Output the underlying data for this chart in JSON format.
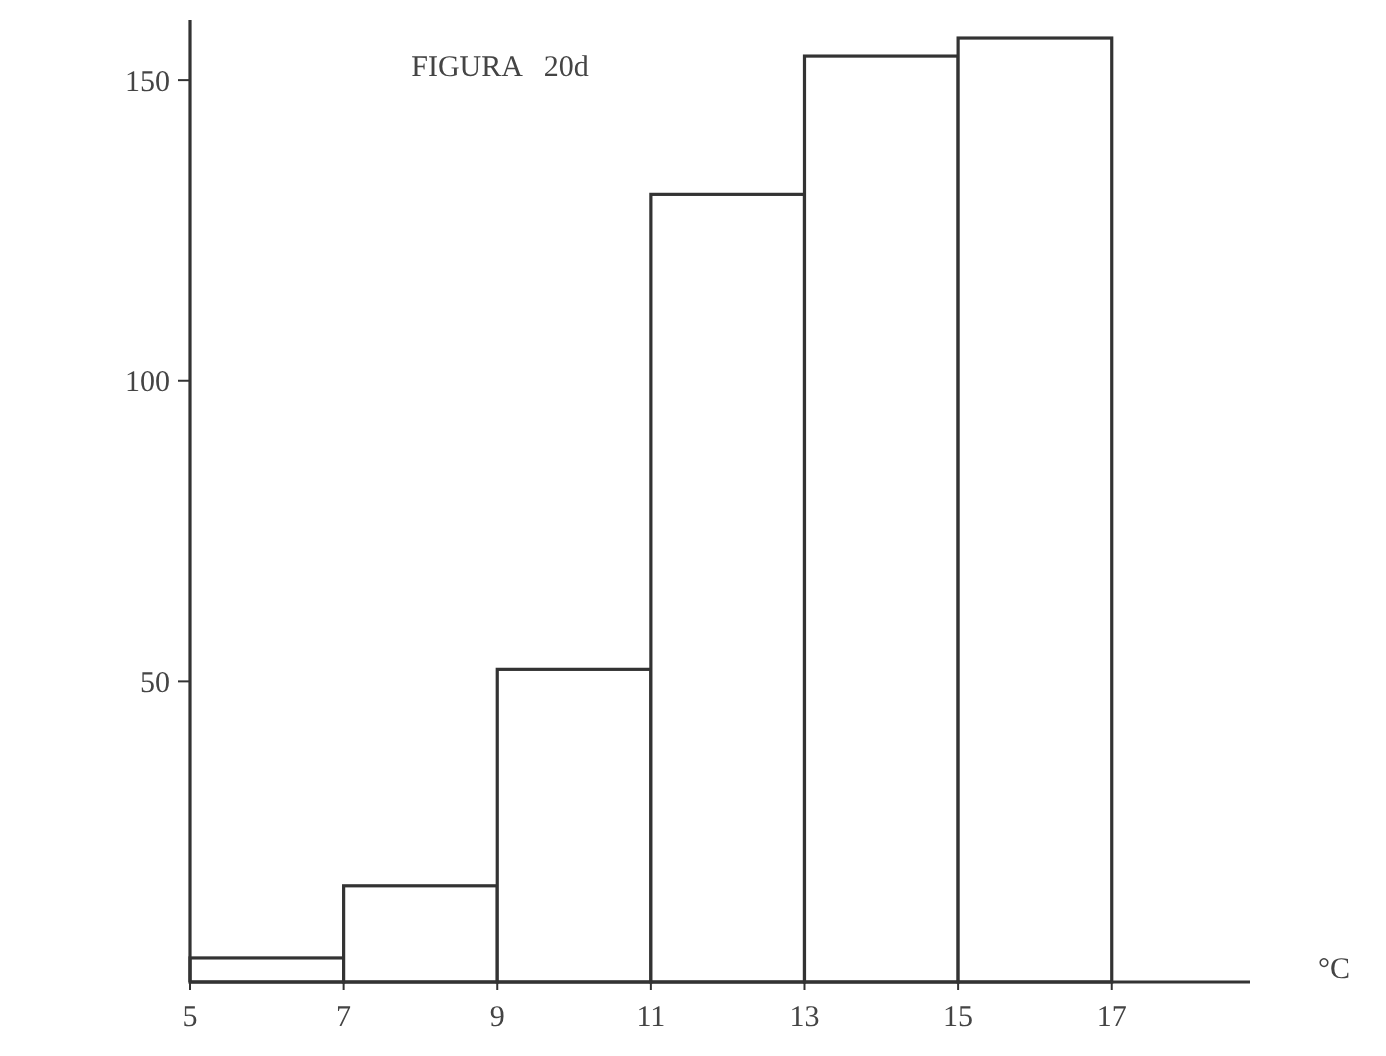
{
  "chart_data": {
    "type": "histogram",
    "title": "FIGURA   20d",
    "xlabel": "°C",
    "bins": [
      5,
      7,
      9,
      11,
      13,
      15,
      17
    ],
    "values": [
      4,
      16,
      52,
      131,
      154,
      157
    ],
    "color": "#ffffff",
    "xlim": [
      5,
      18.8
    ],
    "xticks": [
      5,
      7,
      9,
      11,
      13,
      15,
      17
    ],
    "ylim": [
      0,
      160
    ],
    "yticks": [
      50,
      100,
      150
    ],
    "grid": false
  }
}
